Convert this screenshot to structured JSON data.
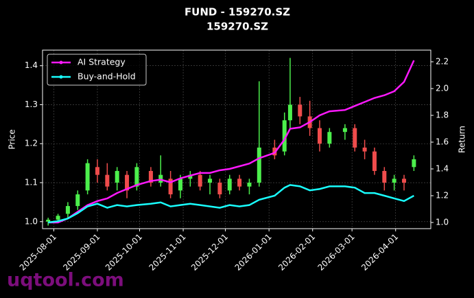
{
  "chart_data": {
    "type": "candlestick",
    "title": "FUND - 159270.SZ",
    "subtitle": "159270.SZ",
    "y_label": "Price",
    "y2_label": "Return",
    "watermark": "uqtool.com",
    "x": [
      "2025-07-28",
      "2025-08-04",
      "2025-08-11",
      "2025-08-18",
      "2025-08-25",
      "2025-09-01",
      "2025-09-08",
      "2025-09-15",
      "2025-09-22",
      "2025-09-29",
      "2025-10-09",
      "2025-10-16",
      "2025-10-23",
      "2025-10-30",
      "2025-11-06",
      "2025-11-13",
      "2025-11-20",
      "2025-11-27",
      "2025-12-04",
      "2025-12-11",
      "2025-12-18",
      "2025-12-25",
      "2026-01-05",
      "2026-01-12",
      "2026-01-16",
      "2026-01-23",
      "2026-01-30",
      "2026-02-06",
      "2026-02-13",
      "2026-02-24",
      "2026-03-03",
      "2026-03-10",
      "2026-03-17",
      "2026-03-24",
      "2026-03-31",
      "2026-04-07",
      "2026-04-14"
    ],
    "open": [
      1.0,
      1.005,
      1.02,
      1.04,
      1.08,
      1.14,
      1.12,
      1.1,
      1.12,
      1.09,
      1.13,
      1.1,
      1.11,
      1.08,
      1.11,
      1.12,
      1.1,
      1.1,
      1.08,
      1.11,
      1.09,
      1.1,
      1.19,
      1.18,
      1.26,
      1.3,
      1.27,
      1.24,
      1.2,
      1.23,
      1.24,
      1.19,
      1.18,
      1.13,
      1.1,
      1.11,
      1.14
    ],
    "high": [
      1.01,
      1.02,
      1.05,
      1.08,
      1.16,
      1.16,
      1.15,
      1.14,
      1.13,
      1.15,
      1.14,
      1.17,
      1.13,
      1.12,
      1.13,
      1.13,
      1.12,
      1.11,
      1.12,
      1.12,
      1.11,
      1.36,
      1.21,
      1.28,
      1.42,
      1.32,
      1.31,
      1.26,
      1.24,
      1.25,
      1.25,
      1.21,
      1.19,
      1.14,
      1.12,
      1.12,
      1.17
    ],
    "low": [
      0.99,
      1.0,
      1.01,
      1.03,
      1.07,
      1.1,
      1.08,
      1.08,
      1.06,
      1.08,
      1.09,
      1.09,
      1.06,
      1.06,
      1.09,
      1.08,
      1.07,
      1.06,
      1.07,
      1.08,
      1.07,
      1.09,
      1.16,
      1.17,
      1.24,
      1.25,
      1.22,
      1.18,
      1.19,
      1.21,
      1.18,
      1.16,
      1.12,
      1.08,
      1.08,
      1.08,
      1.13
    ],
    "close": [
      1.005,
      1.015,
      1.04,
      1.07,
      1.15,
      1.12,
      1.09,
      1.13,
      1.08,
      1.14,
      1.1,
      1.12,
      1.07,
      1.11,
      1.12,
      1.09,
      1.11,
      1.07,
      1.11,
      1.09,
      1.1,
      1.19,
      1.17,
      1.26,
      1.3,
      1.27,
      1.24,
      1.2,
      1.23,
      1.24,
      1.19,
      1.18,
      1.13,
      1.1,
      1.11,
      1.1,
      1.16
    ],
    "up_color": "#4cef4c",
    "down_color": "#ef4c4c",
    "series": [
      {
        "name": "AI Strategy",
        "color": "#ff19ff",
        "axis": "y2",
        "values": [
          1.0,
          1.0,
          1.03,
          1.08,
          1.13,
          1.16,
          1.18,
          1.22,
          1.25,
          1.28,
          1.31,
          1.32,
          1.3,
          1.33,
          1.35,
          1.37,
          1.37,
          1.39,
          1.4,
          1.42,
          1.44,
          1.48,
          1.52,
          1.62,
          1.7,
          1.71,
          1.75,
          1.8,
          1.83,
          1.84,
          1.87,
          1.9,
          1.93,
          1.95,
          1.98,
          2.05,
          2.21
        ]
      },
      {
        "name": "Buy-and-Hold",
        "color": "#19ffff",
        "axis": "y2",
        "values": [
          1.0,
          1.01,
          1.03,
          1.07,
          1.12,
          1.14,
          1.11,
          1.13,
          1.12,
          1.13,
          1.14,
          1.15,
          1.12,
          1.13,
          1.14,
          1.13,
          1.12,
          1.11,
          1.13,
          1.12,
          1.13,
          1.17,
          1.2,
          1.26,
          1.28,
          1.27,
          1.24,
          1.25,
          1.27,
          1.27,
          1.26,
          1.22,
          1.22,
          1.2,
          1.18,
          1.16,
          1.2
        ]
      }
    ],
    "xlim": [
      "2025-07-24",
      "2026-04-26"
    ],
    "xticks": [
      "2025-08-01",
      "2025-09-01",
      "2025-10-01",
      "2025-11-01",
      "2025-12-01",
      "2026-01-01",
      "2026-02-01",
      "2026-03-01",
      "2026-04-01"
    ],
    "ylim": [
      0.982,
      1.44
    ],
    "yticks": [
      {
        "value": 1.0,
        "label": "1.0"
      },
      1.1,
      1.2,
      1.3,
      1.4
    ],
    "y2lim": [
      0.954,
      2.287
    ],
    "y2ticks": [
      {
        "value": 1.0,
        "label": "1.0"
      },
      1.2,
      1.4,
      1.6,
      1.8,
      {
        "value": 2.0,
        "label": "2.0"
      },
      2.2
    ],
    "grid": true,
    "legend": "upper left"
  }
}
